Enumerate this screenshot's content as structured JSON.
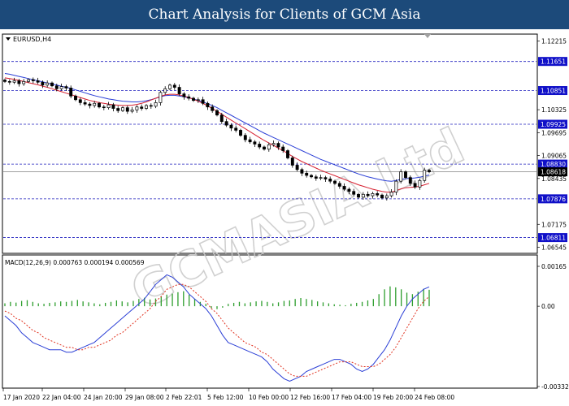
{
  "banner": {
    "title": "Chart Analysis for Clients of GCM Asia"
  },
  "window": {
    "symbol_label": "EURUSD,H4"
  },
  "watermark": {
    "text": "GCMASIA Ltd"
  },
  "indicator": {
    "label": "MACD(12,26,9) 0.000763 0.000194 0.000569"
  },
  "colors": {
    "blue_ma": "#2b3fd6",
    "red_ma": "#d61f2f",
    "hist": "#2e9e2e",
    "signal": "#e0301e",
    "level_line": "#1e1ebe",
    "level_badge": "#1010c8",
    "current_badge": "#000000"
  },
  "chart_data": [
    {
      "type": "candlestick",
      "symbol": "EURUSD,H4",
      "ylim": [
        1.064,
        1.1238
      ],
      "y_ticks": [
        "1.12215",
        "1.11651",
        "1.10851",
        "1.10325",
        "1.09925",
        "1.09695",
        "1.09065",
        "1.08830",
        "1.08618",
        "1.08435",
        "1.07876",
        "1.07175",
        "1.06811",
        "1.06545"
      ],
      "levels": [
        1.11651,
        1.10851,
        1.09925,
        1.0883,
        1.07876,
        1.06811
      ],
      "current_price": 1.08618,
      "x_labels": [
        "17 Jan 2020",
        "22 Jan 04:00",
        "24 Jan 20:00",
        "29 Jan 08:00",
        "2 Feb 22:01",
        "5 Feb 12:00",
        "10 Feb 00:00",
        "12 Feb 16:00",
        "17 Feb 04:00",
        "19 Feb 20:00",
        "24 Feb 08:00"
      ],
      "close": [
        1.111,
        1.1108,
        1.1112,
        1.1104,
        1.111,
        1.1115,
        1.1112,
        1.1108,
        1.11,
        1.1106,
        1.1098,
        1.109,
        1.1096,
        1.1092,
        1.107,
        1.106,
        1.1052,
        1.1048,
        1.1044,
        1.105,
        1.104,
        1.1038,
        1.1046,
        1.1036,
        1.103,
        1.1038,
        1.1028,
        1.1032,
        1.104,
        1.1036,
        1.1044,
        1.1042,
        1.1052,
        1.108,
        1.109,
        1.11,
        1.1094,
        1.1076,
        1.1068,
        1.1064,
        1.1058,
        1.106,
        1.105,
        1.104,
        1.103,
        1.1018,
        1.1,
        1.099,
        1.0982,
        1.0976,
        1.0962,
        1.095,
        1.0944,
        1.0938,
        1.093,
        1.0924,
        1.0936,
        1.094,
        1.093,
        1.092,
        1.09,
        1.088,
        1.0868,
        1.0858,
        1.0852,
        1.0848,
        1.0844,
        1.0846,
        1.0842,
        1.0836,
        1.083,
        1.0822,
        1.0814,
        1.0808,
        1.08,
        1.0792,
        1.08,
        1.0796,
        1.0802,
        1.0798,
        1.079,
        1.0796,
        1.0806,
        1.0836,
        1.0862,
        1.0846,
        1.083,
        1.082,
        1.0838,
        1.0866,
        1.0862
      ],
      "ma_blue": [
        1.1132,
        1.113,
        1.1127,
        1.1124,
        1.1121,
        1.1118,
        1.1115,
        1.1112,
        1.1109,
        1.1106,
        1.1103,
        1.11,
        1.1097,
        1.1094,
        1.1091,
        1.1087,
        1.1083,
        1.1079,
        1.1075,
        1.1071,
        1.1068,
        1.1065,
        1.1062,
        1.106,
        1.1058,
        1.1056,
        1.1055,
        1.1054,
        1.1054,
        1.1055,
        1.1057,
        1.106,
        1.1064,
        1.1068,
        1.1071,
        1.1072,
        1.1072,
        1.107,
        1.1068,
        1.1065,
        1.1062,
        1.1058,
        1.1054,
        1.1049,
        1.1044,
        1.1038,
        1.1031,
        1.1024,
        1.1017,
        1.101,
        1.1003,
        1.0996,
        1.0989,
        1.0982,
        1.0975,
        1.0968,
        1.0962,
        1.0956,
        1.095,
        1.0944,
        1.0938,
        1.0932,
        1.0926,
        1.092,
        1.0914,
        1.0908,
        1.0902,
        1.0896,
        1.0891,
        1.0886,
        1.0881,
        1.0876,
        1.0871,
        1.0866,
        1.0861,
        1.0856,
        1.0852,
        1.0848,
        1.0845,
        1.0842,
        1.0839,
        1.0837,
        1.0836,
        1.0838,
        1.0841,
        1.0843,
        1.0844,
        1.0845,
        1.0847,
        1.085,
        1.0853
      ],
      "ma_red": [
        1.112,
        1.1118,
        1.1116,
        1.1113,
        1.111,
        1.1107,
        1.1104,
        1.1101,
        1.1097,
        1.1094,
        1.109,
        1.1086,
        1.1082,
        1.1078,
        1.1074,
        1.107,
        1.1066,
        1.1062,
        1.1058,
        1.1055,
        1.1052,
        1.105,
        1.1048,
        1.1046,
        1.1045,
        1.1044,
        1.1044,
        1.1045,
        1.1047,
        1.105,
        1.1054,
        1.1059,
        1.1064,
        1.1069,
        1.1073,
        1.1075,
        1.1075,
        1.1073,
        1.107,
        1.1066,
        1.1061,
        1.1056,
        1.105,
        1.1043,
        1.1036,
        1.1028,
        1.102,
        1.1012,
        1.1004,
        1.0996,
        1.0988,
        1.098,
        1.0972,
        1.0964,
        1.0956,
        1.0948,
        1.0941,
        1.0934,
        1.0927,
        1.092,
        1.0912,
        1.0904,
        1.0897,
        1.089,
        1.0884,
        1.0878,
        1.0872,
        1.0866,
        1.0861,
        1.0856,
        1.0851,
        1.0846,
        1.0841,
        1.0836,
        1.0831,
        1.0826,
        1.0822,
        1.0818,
        1.0814,
        1.0811,
        1.0808,
        1.0806,
        1.0806,
        1.081,
        1.0815,
        1.0818,
        1.0819,
        1.082,
        1.0822,
        1.0826,
        1.083
      ]
    },
    {
      "type": "line",
      "name": "MACD(12,26,9)",
      "values_label": "0.000763 0.000194 0.000569",
      "ylim": [
        -0.003322,
        0.00165
      ],
      "y_ticks": [
        "0.00165",
        "0.00",
        "-0.003322"
      ],
      "series": [
        {
          "name": "MACD",
          "values": [
            -0.0004,
            -0.0006,
            -0.0008,
            -0.0011,
            -0.0013,
            -0.0015,
            -0.0016,
            -0.0017,
            -0.0018,
            -0.0018,
            -0.0018,
            -0.0019,
            -0.0019,
            -0.0018,
            -0.0017,
            -0.0016,
            -0.0015,
            -0.0013,
            -0.0011,
            -0.0009,
            -0.0007,
            -0.0005,
            -0.0003,
            -0.0001,
            0.0001,
            0.0003,
            0.0006,
            0.0009,
            0.0011,
            0.0013,
            0.0012,
            0.001,
            0.0008,
            0.0005,
            0.0003,
            0.0001,
            -0.0001,
            -0.0004,
            -0.0008,
            -0.0012,
            -0.0015,
            -0.0016,
            -0.0017,
            -0.0018,
            -0.0019,
            -0.002,
            -0.0021,
            -0.0023,
            -0.0026,
            -0.0028,
            -0.003,
            -0.0031,
            -0.003,
            -0.0029,
            -0.0027,
            -0.0026,
            -0.0025,
            -0.0024,
            -0.0023,
            -0.0022,
            -0.0022,
            -0.0023,
            -0.0024,
            -0.0026,
            -0.0027,
            -0.0026,
            -0.0024,
            -0.0021,
            -0.0018,
            -0.0014,
            -0.0009,
            -0.0004,
            0.0,
            0.0003,
            0.0005,
            0.0007,
            0.0008
          ]
        },
        {
          "name": "Signal",
          "values": [
            -0.0002,
            -0.0003,
            -0.0005,
            -0.0006,
            -0.0008,
            -0.001,
            -0.0011,
            -0.0013,
            -0.0014,
            -0.0015,
            -0.0016,
            -0.0017,
            -0.0017,
            -0.0018,
            -0.0018,
            -0.0017,
            -0.0017,
            -0.0016,
            -0.0015,
            -0.0014,
            -0.0012,
            -0.0011,
            -0.0009,
            -0.0007,
            -0.0005,
            -0.0003,
            -0.0001,
            0.0002,
            0.0004,
            0.0007,
            0.0008,
            0.0009,
            0.0009,
            0.0008,
            0.0006,
            0.0004,
            0.0002,
            -0.0001,
            -0.0003,
            -0.0006,
            -0.0009,
            -0.0011,
            -0.0013,
            -0.0015,
            -0.0016,
            -0.0017,
            -0.0019,
            -0.002,
            -0.0022,
            -0.0024,
            -0.0026,
            -0.0028,
            -0.0029,
            -0.0029,
            -0.0029,
            -0.0028,
            -0.0027,
            -0.0026,
            -0.0025,
            -0.0024,
            -0.0023,
            -0.0023,
            -0.0023,
            -0.0024,
            -0.0025,
            -0.0025,
            -0.0025,
            -0.0024,
            -0.0022,
            -0.002,
            -0.0017,
            -0.0013,
            -0.0009,
            -0.0005,
            -0.0001,
            0.0002,
            0.0004
          ]
        }
      ],
      "histogram": [
        0.00012,
        0.00018,
        0.00015,
        0.00022,
        0.00025,
        0.00018,
        0.00012,
        0.0001,
        0.00014,
        0.00016,
        0.0002,
        0.00018,
        0.00022,
        0.00026,
        0.0002,
        0.00016,
        0.00012,
        8e-05,
        0.00014,
        0.00018,
        0.00024,
        0.0002,
        0.00016,
        0.00022,
        0.0003,
        0.00035,
        0.00028,
        0.00032,
        0.0004,
        0.00048,
        0.00052,
        0.00058,
        0.00062,
        0.00048,
        0.0003,
        0.00018,
        0.0001,
        -8e-05,
        -0.00012,
        -6e-05,
        0.0001,
        0.00014,
        0.00018,
        0.00012,
        0.00016,
        0.0002,
        0.00022,
        0.00018,
        0.00012,
        0.00016,
        0.00022,
        0.00024,
        0.0003,
        0.00034,
        0.0003,
        0.00026,
        0.0002,
        0.00016,
        0.00012,
        8e-05,
        6e-05,
        4e-05,
        0.0001,
        0.00014,
        0.00018,
        0.00024,
        0.0003,
        0.0005,
        0.0007,
        0.00082,
        0.00078,
        0.0007,
        0.00056,
        0.0005,
        0.0006,
        0.00072,
        0.00068
      ]
    }
  ]
}
